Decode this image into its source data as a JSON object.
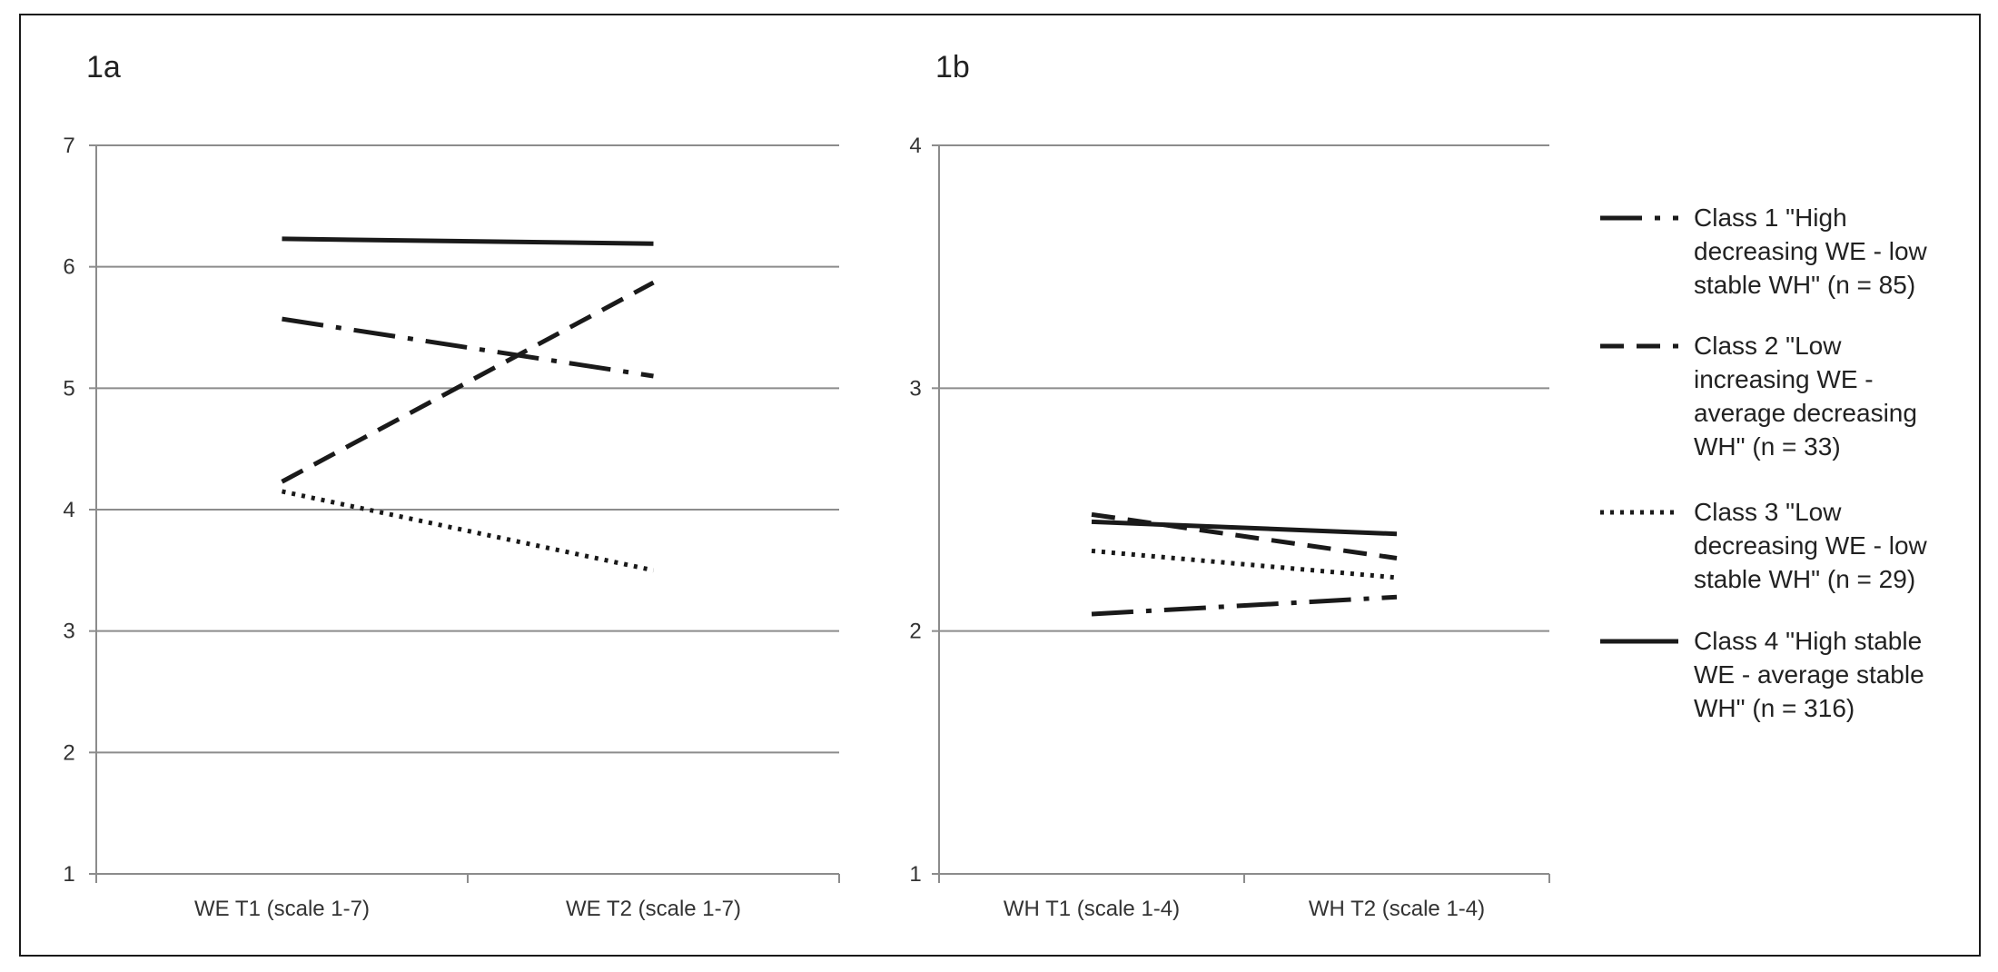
{
  "chart_data": [
    {
      "type": "line",
      "panel_label": "1a",
      "categories": [
        "WE T1 (scale 1-7)",
        "WE T2 (scale 1-7)"
      ],
      "yticks": [
        "1",
        "2",
        "3",
        "4",
        "5",
        "6",
        "7"
      ],
      "ylim": [
        1,
        7
      ],
      "grid": true,
      "series": [
        {
          "name": "Class 1 \"High decreasing WE - low stable WH\" (n = 85)",
          "values": [
            5.57,
            5.1
          ]
        },
        {
          "name": "Class 2 \"Low increasing WE - average decreasing WH\" (n = 33)",
          "values": [
            4.23,
            5.87
          ]
        },
        {
          "name": "Class 3 \"Low decreasing WE - low stable WH\" (n = 29)",
          "values": [
            4.15,
            3.5
          ]
        },
        {
          "name": "Class 4 \"High stable WE - average stable WH\" (n = 316)",
          "values": [
            6.23,
            6.19
          ]
        }
      ]
    },
    {
      "type": "line",
      "panel_label": "1b",
      "categories": [
        "WH T1 (scale 1-4)",
        "WH T2 (scale 1-4)"
      ],
      "yticks": [
        "1",
        "2",
        "3",
        "4"
      ],
      "ylim": [
        1,
        4
      ],
      "grid": true,
      "series": [
        {
          "name": "Class 1 \"High decreasing WE - low stable WH\" (n = 85)",
          "values": [
            2.07,
            2.14
          ]
        },
        {
          "name": "Class 2 \"Low increasing WE - average decreasing WH\" (n = 33)",
          "values": [
            2.48,
            2.3
          ]
        },
        {
          "name": "Class 3 \"Low decreasing WE - low stable WH\" (n = 29)",
          "values": [
            2.33,
            2.22
          ]
        },
        {
          "name": "Class 4 \"High stable WE - average stable WH\" (n = 316)",
          "values": [
            2.45,
            2.4
          ]
        }
      ]
    }
  ],
  "legend": {
    "position": "right",
    "items": [
      {
        "style": "dash-dot",
        "lines": [
          "Class 1 \"High",
          "decreasing WE - low",
          "stable WH\" (n = 85)"
        ]
      },
      {
        "style": "dashed",
        "lines": [
          "Class 2 \"Low",
          "increasing WE -",
          "average decreasing",
          "WH\" (n = 33)"
        ]
      },
      {
        "style": "dotted",
        "lines": [
          "Class 3 \"Low",
          "decreasing WE - low",
          "stable WH\" (n = 29)"
        ]
      },
      {
        "style": "solid",
        "lines": [
          "Class 4 \"High stable",
          "WE - average stable",
          "WH\" (n = 316)"
        ]
      }
    ]
  }
}
